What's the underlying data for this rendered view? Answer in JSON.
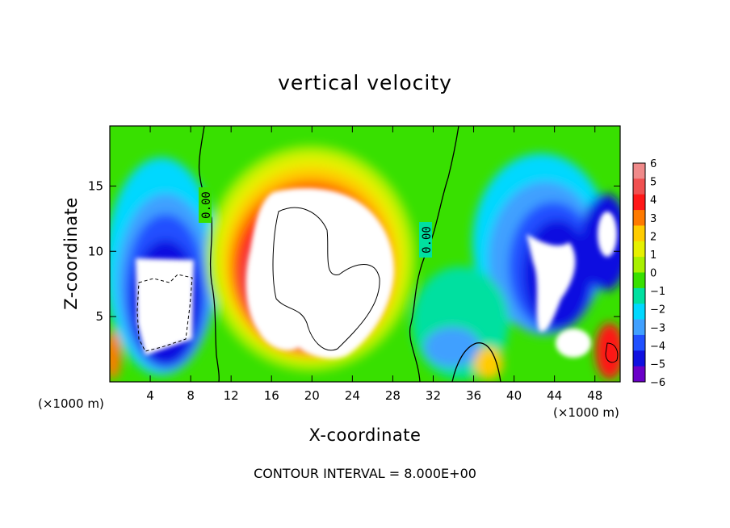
{
  "chart_data": {
    "type": "heatmap",
    "title": "vertical velocity",
    "xlabel": "X-coordinate",
    "ylabel": "Z-coordinate",
    "x_unit_left": "(×1000 m)",
    "x_unit_right": "(×1000 m)",
    "xlim": [
      0,
      50.5
    ],
    "ylim": [
      0,
      19.6
    ],
    "x_ticks": [
      4,
      8,
      12,
      16,
      20,
      24,
      28,
      32,
      36,
      40,
      44,
      48
    ],
    "y_ticks": [
      5,
      10,
      15
    ],
    "colorbar": {
      "levels": [
        6,
        5,
        4,
        3,
        2,
        1,
        0,
        -1,
        -2,
        -3,
        -4,
        -5,
        -6
      ],
      "colors": [
        "#f08a8a",
        "#f05050",
        "#ff1818",
        "#ff7a00",
        "#ffcc00",
        "#e6f000",
        "#a8f000",
        "#38e000",
        "#00e0a0",
        "#00d8ff",
        "#40a0ff",
        "#2050ff",
        "#1010e0",
        "#6a00c8"
      ]
    },
    "zero_contour_label": "0.00",
    "features": [
      {
        "kind": "updraft-saturated",
        "x": 20,
        "z": 10.5,
        "peak": 8
      },
      {
        "kind": "downdraft-saturated",
        "x": 5.5,
        "z": 6,
        "peak": -8
      },
      {
        "kind": "downdraft-saturated",
        "x": 43,
        "z": 8,
        "peak": -8
      },
      {
        "kind": "downdraft-saturated",
        "x": 48.5,
        "z": 12,
        "peak": -8
      },
      {
        "kind": "updraft",
        "x": 37,
        "z": 1.5,
        "peak": 3
      },
      {
        "kind": "updraft",
        "x": 49.5,
        "z": 2.5,
        "peak": 6
      }
    ],
    "contour_interval_text": "CONTOUR INTERVAL = 8.000E+00"
  }
}
